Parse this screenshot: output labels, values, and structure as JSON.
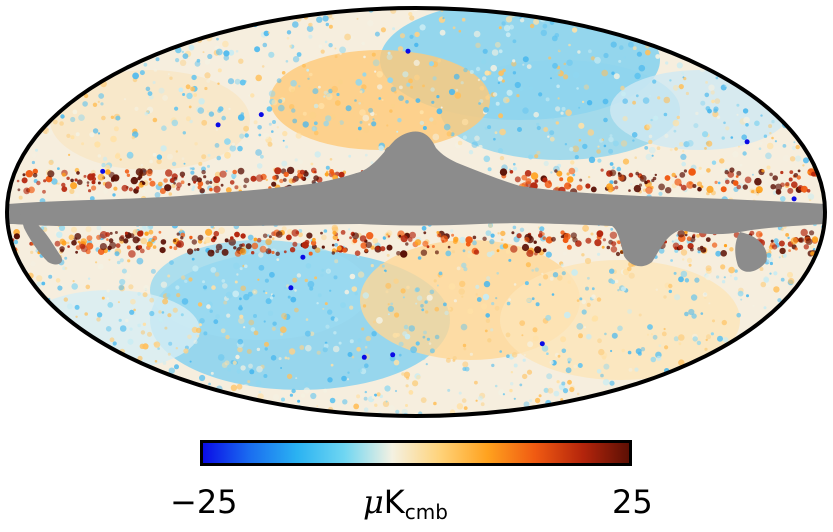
{
  "colorbar": {
    "min_label": "−25",
    "max_label": "25",
    "unit_symbol": "μ",
    "unit_main": "K",
    "unit_sub": "cmb",
    "stops": [
      "#0a0ae6",
      "#1a6cf0",
      "#2ab2f2",
      "#6fd6f2",
      "#f4f1e2",
      "#ffd37a",
      "#ffa21e",
      "#f05a12",
      "#b4250c",
      "#5a0f04"
    ]
  },
  "map": {
    "projection": "mollweide",
    "mask_color": "#8c8c8c",
    "outline_color": "#000000"
  }
}
